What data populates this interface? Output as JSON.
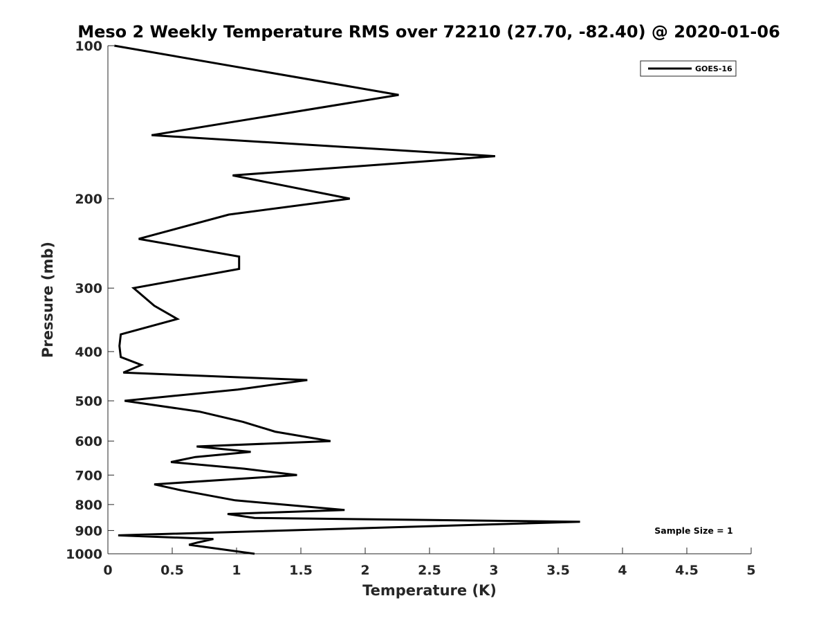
{
  "chart_data": {
    "type": "line",
    "title": "Meso 2 Weekly Temperature RMS over 72210 (27.70, -82.40) @ 2020-01-06",
    "xlabel": "Temperature (K)",
    "ylabel": "Pressure (mb)",
    "xlim": [
      0,
      5
    ],
    "ylim": [
      100,
      1000
    ],
    "yscale": "log",
    "y_reversed": true,
    "x_ticks": [
      0,
      0.5,
      1,
      1.5,
      2,
      2.5,
      3,
      3.5,
      4,
      4.5,
      5
    ],
    "x_tick_labels": [
      "0",
      "0.5",
      "1",
      "1.5",
      "2",
      "2.5",
      "3",
      "3.5",
      "4",
      "4.5",
      "5"
    ],
    "y_ticks": [
      100,
      200,
      300,
      400,
      500,
      600,
      700,
      800,
      900,
      1000
    ],
    "y_tick_labels": [
      "100",
      "200",
      "300",
      "400",
      "500",
      "600",
      "700",
      "800",
      "900",
      "1000"
    ],
    "grid": false,
    "legend_position": "top-right",
    "annotation": "Sample Size = 1",
    "series": [
      {
        "name": "GOES-16",
        "color": "#000000",
        "x": [
          0.05,
          2.26,
          0.34,
          3.01,
          0.97,
          1.88,
          0.94,
          0.24,
          1.02,
          1.02,
          0.2,
          0.36,
          0.54,
          0.1,
          0.09,
          0.1,
          0.26,
          0.12,
          1.55,
          1.01,
          0.13,
          0.71,
          1.05,
          1.3,
          1.73,
          0.69,
          1.11,
          0.68,
          0.49,
          1.06,
          1.47,
          0.36,
          0.57,
          0.99,
          1.84,
          0.93,
          1.14,
          3.67,
          0.08,
          0.82,
          0.7,
          0.63,
          1.14
        ],
        "y": [
          100,
          125,
          150,
          165,
          180,
          200,
          215,
          240,
          260,
          275,
          300,
          325,
          345,
          370,
          390,
          410,
          425,
          440,
          455,
          475,
          500,
          525,
          550,
          575,
          600,
          615,
          630,
          645,
          660,
          680,
          700,
          730,
          750,
          785,
          820,
          835,
          850,
          865,
          920,
          935,
          950,
          960,
          1000
        ]
      }
    ]
  }
}
